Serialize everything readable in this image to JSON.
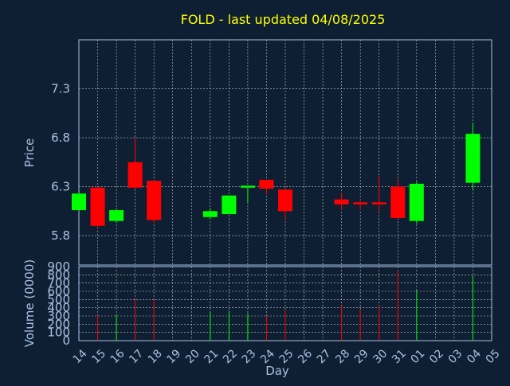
{
  "chart_data": {
    "type": "candlestick",
    "title": "FOLD - last updated 04/08/2025",
    "xlabel": "Day",
    "price_panel": {
      "ylabel": "Price",
      "yticks": [
        5.8,
        6.3,
        6.8,
        7.3
      ],
      "ylim": [
        5.5,
        7.8
      ]
    },
    "volume_panel": {
      "ylabel": "Volume (0000)",
      "yticks": [
        0,
        100,
        200,
        300,
        400,
        500,
        600,
        700,
        800,
        900
      ],
      "ylim": [
        0,
        900
      ]
    },
    "x_labels": [
      "14",
      "15",
      "16",
      "17",
      "18",
      "19",
      "20",
      "21",
      "22",
      "23",
      "24",
      "25",
      "26",
      "27",
      "28",
      "29",
      "30",
      "31",
      "01",
      "02",
      "03",
      "04",
      "05"
    ],
    "grid": true,
    "colors": {
      "up": "#00ff00",
      "down": "#ff0000",
      "title": "#ffff00",
      "axis_text": "#a8c0e0",
      "grid": "#ffffff"
    },
    "candles": [
      {
        "day": "14",
        "open": 6.06,
        "high": 6.24,
        "low": 6.05,
        "close": 6.23,
        "volume": 0
      },
      {
        "day": "15",
        "open": 6.29,
        "high": 6.3,
        "low": 5.87,
        "close": 5.9,
        "volume": 310
      },
      {
        "day": "16",
        "open": 5.95,
        "high": 6.08,
        "low": 5.93,
        "close": 6.06,
        "volume": 320
      },
      {
        "day": "17",
        "open": 6.55,
        "high": 6.8,
        "low": 6.28,
        "close": 6.29,
        "volume": 500
      },
      {
        "day": "18",
        "open": 6.36,
        "high": 6.36,
        "low": 5.93,
        "close": 5.96,
        "volume": 500
      },
      {
        "day": "21",
        "open": 5.99,
        "high": 6.08,
        "low": 5.97,
        "close": 6.05,
        "volume": 350
      },
      {
        "day": "22",
        "open": 6.02,
        "high": 6.21,
        "low": 6.02,
        "close": 6.21,
        "volume": 360
      },
      {
        "day": "23",
        "open": 6.29,
        "high": 6.31,
        "low": 6.14,
        "close": 6.31,
        "volume": 330
      },
      {
        "day": "24",
        "open": 6.37,
        "high": 6.37,
        "low": 6.22,
        "close": 6.28,
        "volume": 300
      },
      {
        "day": "25",
        "open": 6.27,
        "high": 6.28,
        "low": 5.97,
        "close": 6.05,
        "volume": 380
      },
      {
        "day": "28",
        "open": 6.17,
        "high": 6.24,
        "low": 6.06,
        "close": 6.12,
        "volume": 430
      },
      {
        "day": "29",
        "open": 6.14,
        "high": 6.17,
        "low": 6.06,
        "close": 6.12,
        "volume": 380
      },
      {
        "day": "30",
        "open": 6.14,
        "high": 6.41,
        "low": 6.05,
        "close": 6.12,
        "volume": 430
      },
      {
        "day": "31",
        "open": 6.3,
        "high": 6.38,
        "low": 5.97,
        "close": 5.98,
        "volume": 850
      },
      {
        "day": "01",
        "open": 5.95,
        "high": 6.35,
        "low": 5.92,
        "close": 6.33,
        "volume": 610
      },
      {
        "day": "04",
        "open": 6.34,
        "high": 6.95,
        "low": 6.27,
        "close": 6.84,
        "volume": 790
      }
    ]
  }
}
